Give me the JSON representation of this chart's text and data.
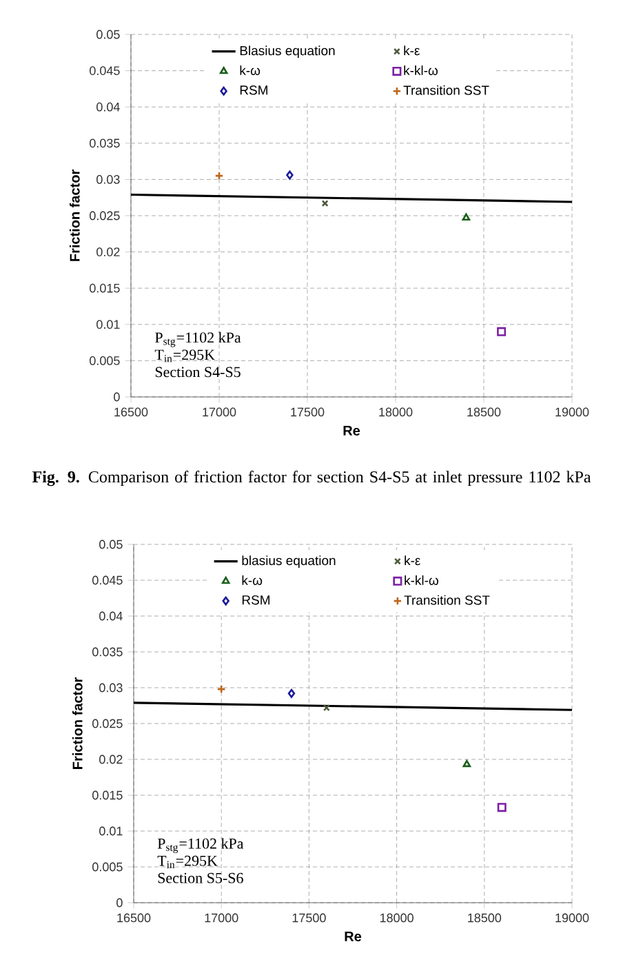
{
  "chart_data": [
    {
      "type": "scatter",
      "xlabel": "Re",
      "ylabel": "Friction factor",
      "xlim": [
        16500,
        19000
      ],
      "xticks": [
        16500,
        17000,
        17500,
        18000,
        18500,
        19000
      ],
      "ylim": [
        0,
        0.05
      ],
      "yticks": [
        0,
        0.005,
        0.01,
        0.015,
        0.02,
        0.025,
        0.03,
        0.035,
        0.04,
        0.045,
        0.05
      ],
      "grid": true,
      "legend": "top",
      "series": [
        {
          "name": "Blasius equation",
          "type": "line",
          "marker": "none",
          "color": "#000000",
          "x": [
            16500,
            19000
          ],
          "values": [
            0.0279,
            0.0269
          ]
        },
        {
          "name": "k-ε",
          "marker": "cross",
          "color": "#4d5a3c",
          "x": [
            17600
          ],
          "values": [
            0.0267
          ]
        },
        {
          "name": "k-ω",
          "marker": "triangle",
          "color": "#1a5e1a",
          "x": [
            18400
          ],
          "values": [
            0.0247
          ]
        },
        {
          "name": "k-kl-ω",
          "marker": "square",
          "color": "#7b1fa2",
          "x": [
            18600
          ],
          "values": [
            0.009
          ]
        },
        {
          "name": "RSM",
          "marker": "diamond",
          "color": "#1a1a9c",
          "x": [
            17400
          ],
          "values": [
            0.0306
          ]
        },
        {
          "name": "Transition SST",
          "marker": "plus",
          "color": "#c0651a",
          "x": [
            17000
          ],
          "values": [
            0.0305
          ]
        }
      ],
      "annotations": [
        "P$_{stg}$=1102 kPa",
        "T$_{in}$=295K",
        "Section S4-S5",
        "**Fig. 9.** Comparison of friction factor for section S4-S5 at inlet pressure 1102 kPa"
      ]
    },
    {
      "type": "scatter",
      "xlabel": "Re",
      "ylabel": "Friction factor",
      "xlim": [
        16500,
        19000
      ],
      "xticks": [
        16500,
        17000,
        17500,
        18000,
        18500,
        19000
      ],
      "ylim": [
        0,
        0.05
      ],
      "yticks": [
        0,
        0.005,
        0.01,
        0.015,
        0.02,
        0.025,
        0.03,
        0.035,
        0.04,
        0.045,
        0.05
      ],
      "grid": true,
      "legend": "top",
      "series": [
        {
          "name": "blasius equation",
          "type": "line",
          "marker": "none",
          "color": "#000000",
          "x": [
            16500,
            19000
          ],
          "values": [
            0.0279,
            0.0269
          ]
        },
        {
          "name": "k-ε",
          "marker": "cross",
          "color": "#4d5a3c",
          "x": [
            17600
          ],
          "values": [
            0.0272
          ]
        },
        {
          "name": "k-ω",
          "marker": "triangle",
          "color": "#1a5e1a",
          "x": [
            18400
          ],
          "values": [
            0.0193
          ]
        },
        {
          "name": "k-kl-ω",
          "marker": "square",
          "color": "#7b1fa2",
          "x": [
            18600
          ],
          "values": [
            0.0133
          ]
        },
        {
          "name": "RSM",
          "marker": "diamond",
          "color": "#1a1a9c",
          "x": [
            17400
          ],
          "values": [
            0.0292
          ]
        },
        {
          "name": "Transition SST",
          "marker": "plus",
          "color": "#c0651a",
          "x": [
            17000
          ],
          "values": [
            0.0298
          ]
        }
      ],
      "annotations": [
        "P$_{stg}$=1102 kPa",
        "T$_{in}$=295K",
        "Section S5-S6"
      ]
    }
  ]
}
